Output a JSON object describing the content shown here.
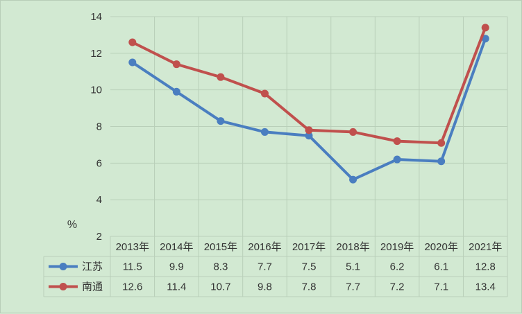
{
  "chart_data": {
    "type": "line",
    "title": "",
    "ylabel": "%",
    "xlabel": "",
    "ylim": [
      2,
      14
    ],
    "yticks": [
      2,
      4,
      6,
      8,
      10,
      12,
      14
    ],
    "grid": true,
    "legend": "data-table-left",
    "categories": [
      "2013年",
      "2014年",
      "2015年",
      "2016年",
      "2017年",
      "2018年",
      "2019年",
      "2020年",
      "2021年"
    ],
    "series": [
      {
        "name": "江苏",
        "color": "#4a7ec0",
        "values": [
          11.5,
          9.9,
          8.3,
          7.7,
          7.5,
          5.1,
          6.2,
          6.1,
          12.8
        ],
        "labels": [
          "11.5",
          "9.9",
          "8.3",
          "7.7",
          "7.5",
          "5.1",
          "6.2",
          "6.1",
          "12.8"
        ]
      },
      {
        "name": "南通",
        "color": "#c0504d",
        "values": [
          12.6,
          11.4,
          10.7,
          9.8,
          7.8,
          7.7,
          7.2,
          7.1,
          13.4
        ],
        "labels": [
          "12.6",
          "11.4",
          "10.7",
          "9.8",
          "7.8",
          "7.7",
          "7.2",
          "7.1",
          "13.4"
        ]
      }
    ]
  }
}
